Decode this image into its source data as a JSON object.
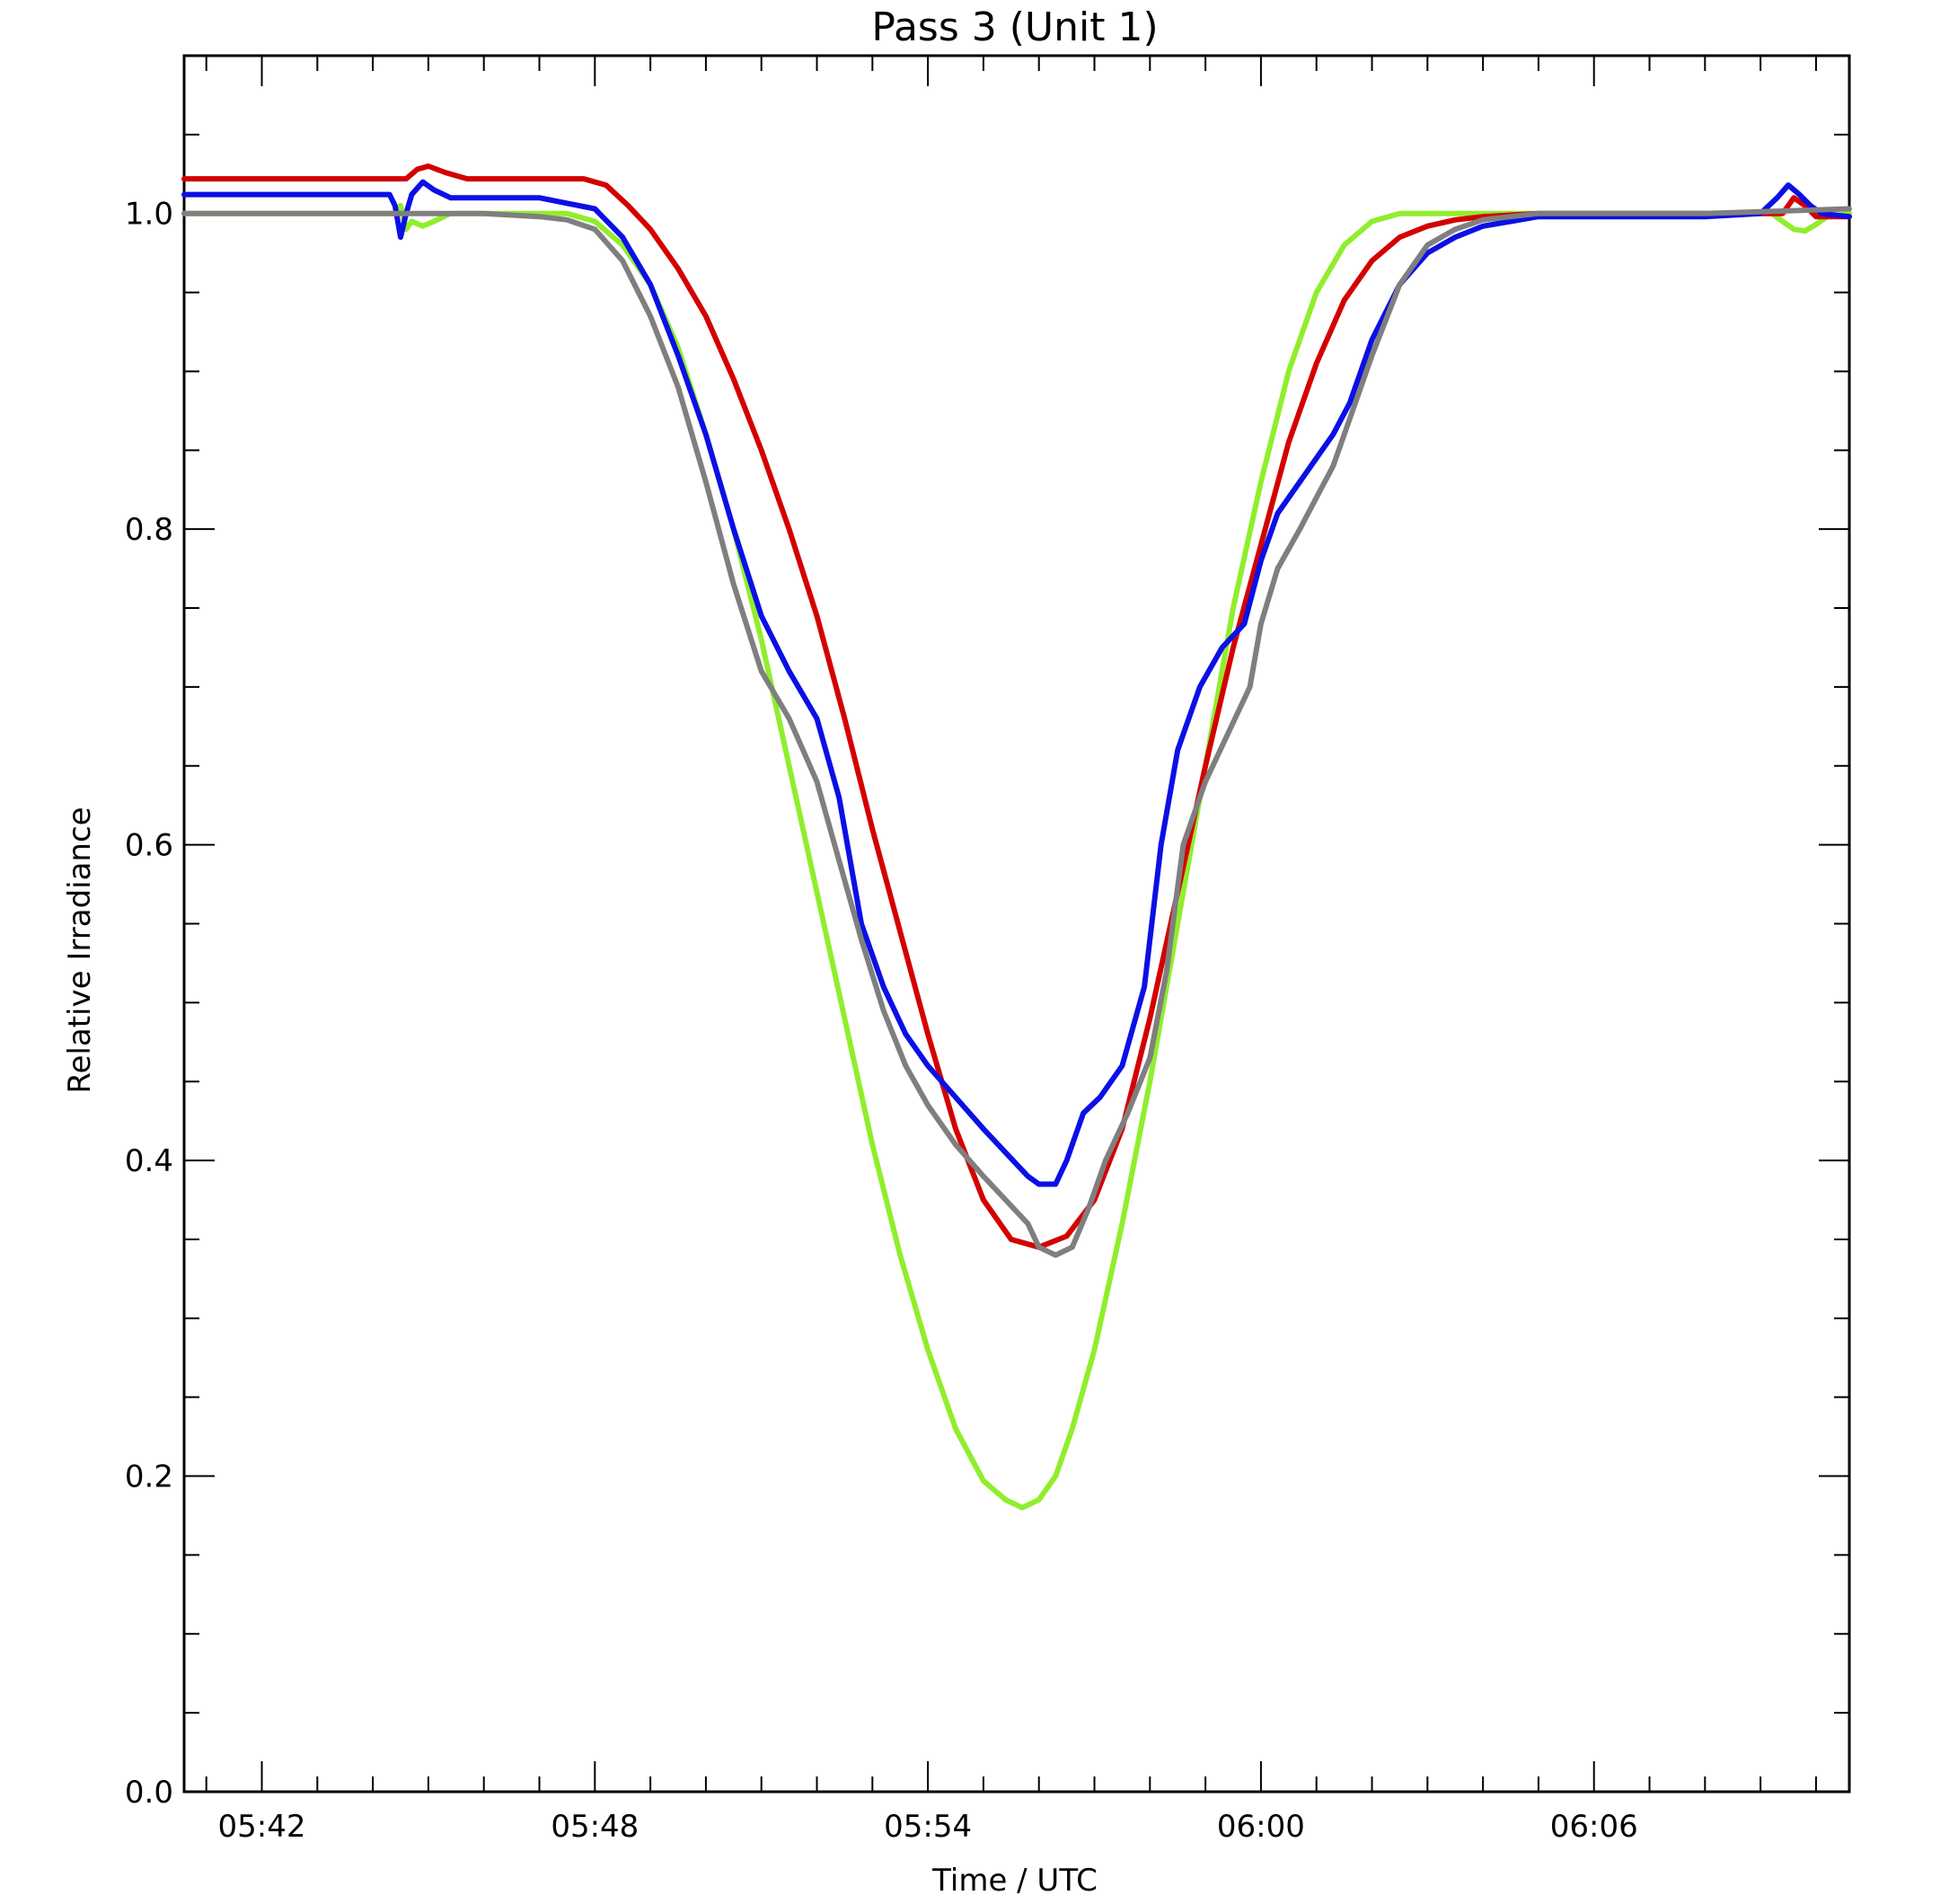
{
  "chart_data": {
    "type": "line",
    "title": "Pass 3 (Unit 1)",
    "xlabel": "Time / UTC",
    "ylabel": "Relative Irradiance",
    "xlim_minutes_utc": [
      340.6,
      370.6
    ],
    "ylim": [
      0.0,
      1.1
    ],
    "grid": false,
    "legend": "none",
    "x_ticks": [
      {
        "value": 342,
        "label": "05:42"
      },
      {
        "value": 348,
        "label": "05:48"
      },
      {
        "value": 354,
        "label": "05:54"
      },
      {
        "value": 360,
        "label": "06:00"
      },
      {
        "value": 366,
        "label": "06:06"
      }
    ],
    "y_ticks": [
      {
        "value": 0.0,
        "label": "0.0"
      },
      {
        "value": 0.2,
        "label": "0.2"
      },
      {
        "value": 0.4,
        "label": "0.4"
      },
      {
        "value": 0.6,
        "label": "0.6"
      },
      {
        "value": 0.8,
        "label": "0.8"
      },
      {
        "value": 1.0,
        "label": "1.0"
      }
    ],
    "series": [
      {
        "color": "#90ee2c",
        "x": [
          340.6,
          344.4,
          344.5,
          344.6,
          344.7,
          344.9,
          345.1,
          345.4,
          347.5,
          348.0,
          348.5,
          349.0,
          349.5,
          350.0,
          350.5,
          351.0,
          351.5,
          352.0,
          352.5,
          353.0,
          353.5,
          354.0,
          354.5,
          355.0,
          355.4,
          355.7,
          356.0,
          356.3,
          356.6,
          357.0,
          357.5,
          358.0,
          358.5,
          359.0,
          359.5,
          360.0,
          360.5,
          361.0,
          361.5,
          362.0,
          362.5,
          363.0,
          363.2,
          369.2,
          369.4,
          369.6,
          369.8,
          370.0,
          370.2,
          370.6
        ],
        "y": [
          1.0,
          1.0,
          1.005,
          0.99,
          0.995,
          0.992,
          0.995,
          1.0,
          1.0,
          0.995,
          0.98,
          0.955,
          0.915,
          0.86,
          0.8,
          0.73,
          0.65,
          0.57,
          0.49,
          0.41,
          0.34,
          0.28,
          0.23,
          0.197,
          0.185,
          0.18,
          0.185,
          0.2,
          0.23,
          0.28,
          0.36,
          0.45,
          0.55,
          0.65,
          0.75,
          0.83,
          0.9,
          0.95,
          0.98,
          0.995,
          1.0,
          1.0,
          1.0,
          1.0,
          0.995,
          0.99,
          0.989,
          0.993,
          0.998,
          1.0
        ]
      },
      {
        "color": "#d40000",
        "x": [
          340.6,
          344.6,
          344.8,
          345.0,
          345.3,
          345.7,
          347.8,
          348.2,
          348.6,
          349.0,
          349.5,
          350.0,
          350.5,
          351.0,
          351.5,
          352.0,
          352.5,
          353.0,
          353.5,
          354.0,
          354.5,
          355.0,
          355.5,
          356.0,
          356.5,
          357.0,
          357.5,
          358.0,
          358.5,
          359.0,
          359.5,
          360.0,
          360.5,
          361.0,
          361.5,
          362.0,
          362.5,
          363.0,
          363.5,
          364.0,
          365.0,
          366.0,
          369.0,
          369.4,
          369.6,
          369.8,
          370.0,
          370.6
        ],
        "y": [
          1.022,
          1.022,
          1.028,
          1.03,
          1.026,
          1.022,
          1.022,
          1.018,
          1.005,
          0.99,
          0.965,
          0.935,
          0.895,
          0.85,
          0.8,
          0.745,
          0.68,
          0.61,
          0.545,
          0.48,
          0.42,
          0.375,
          0.35,
          0.345,
          0.352,
          0.375,
          0.42,
          0.49,
          0.57,
          0.65,
          0.725,
          0.79,
          0.855,
          0.905,
          0.945,
          0.97,
          0.985,
          0.992,
          0.996,
          0.998,
          1.0,
          1.0,
          1.0,
          1.0,
          1.01,
          1.005,
          0.998,
          0.998
        ]
      },
      {
        "color": "#0a10e6",
        "x": [
          340.6,
          344.3,
          344.4,
          344.5,
          344.6,
          344.7,
          344.9,
          345.1,
          345.4,
          346.0,
          347.0,
          348.0,
          348.5,
          349.0,
          349.5,
          350.0,
          350.5,
          351.0,
          351.5,
          352.0,
          352.4,
          352.8,
          353.2,
          353.6,
          354.0,
          354.5,
          355.0,
          355.4,
          355.8,
          356.0,
          356.3,
          356.5,
          356.8,
          357.1,
          357.5,
          357.9,
          358.2,
          358.5,
          358.9,
          359.3,
          359.7,
          360.0,
          360.3,
          360.7,
          361.0,
          361.3,
          361.6,
          362.0,
          362.5,
          363.0,
          363.5,
          364.0,
          364.5,
          365.0,
          368.0,
          369.0,
          369.3,
          369.5,
          369.7,
          369.9,
          370.1,
          370.6
        ],
        "y": [
          1.012,
          1.012,
          1.005,
          0.985,
          1.0,
          1.012,
          1.02,
          1.015,
          1.01,
          1.01,
          1.01,
          1.003,
          0.985,
          0.955,
          0.91,
          0.86,
          0.8,
          0.745,
          0.71,
          0.68,
          0.63,
          0.55,
          0.51,
          0.48,
          0.46,
          0.44,
          0.42,
          0.405,
          0.39,
          0.385,
          0.385,
          0.4,
          0.43,
          0.44,
          0.46,
          0.51,
          0.6,
          0.66,
          0.7,
          0.725,
          0.74,
          0.78,
          0.81,
          0.83,
          0.845,
          0.86,
          0.88,
          0.92,
          0.955,
          0.975,
          0.985,
          0.992,
          0.995,
          0.998,
          0.998,
          1.0,
          1.01,
          1.018,
          1.012,
          1.005,
          1.0,
          0.998
        ]
      },
      {
        "color": "#7f7f7f",
        "x": [
          340.6,
          344.0,
          345.0,
          346.0,
          347.0,
          347.5,
          348.0,
          348.5,
          349.0,
          349.5,
          350.0,
          350.5,
          351.0,
          351.5,
          352.0,
          352.4,
          352.8,
          353.2,
          353.6,
          354.0,
          354.5,
          355.0,
          355.4,
          355.8,
          356.0,
          356.3,
          356.6,
          356.9,
          357.2,
          357.6,
          358.0,
          358.3,
          358.6,
          359.0,
          359.4,
          359.8,
          360.0,
          360.3,
          360.7,
          361.0,
          361.3,
          361.6,
          362.0,
          362.5,
          363.0,
          363.5,
          364.0,
          364.5,
          365.0,
          366.0,
          368.0,
          370.6
        ],
        "y": [
          1.0,
          1.0,
          1.0,
          1.0,
          0.998,
          0.996,
          0.99,
          0.97,
          0.935,
          0.89,
          0.83,
          0.765,
          0.71,
          0.68,
          0.64,
          0.59,
          0.54,
          0.495,
          0.46,
          0.435,
          0.41,
          0.39,
          0.375,
          0.36,
          0.345,
          0.34,
          0.345,
          0.37,
          0.4,
          0.43,
          0.465,
          0.52,
          0.6,
          0.64,
          0.67,
          0.7,
          0.74,
          0.775,
          0.8,
          0.82,
          0.84,
          0.87,
          0.91,
          0.955,
          0.98,
          0.99,
          0.996,
          0.998,
          1.0,
          1.0,
          1.0,
          1.003
        ]
      }
    ]
  }
}
